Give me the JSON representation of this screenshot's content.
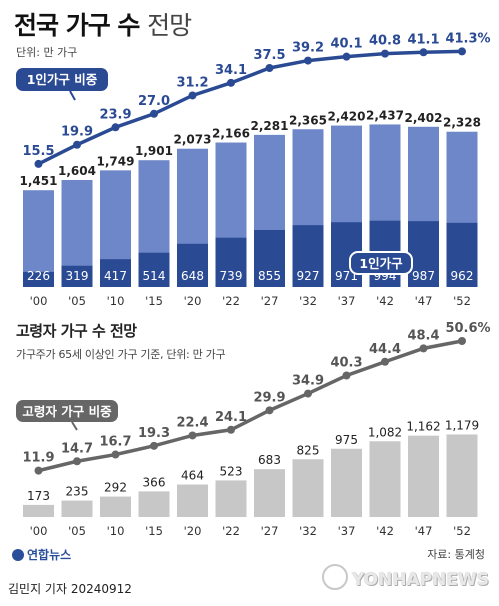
{
  "header": {
    "title_bold": "전국 가구 수",
    "title_light": "전망",
    "unit": "단위: 만 가구"
  },
  "section2": {
    "title": "고령자 가구 수 전망",
    "note": "가구주가 65세 이상인 가구 기준, 단위: 만 가구"
  },
  "footer": {
    "logo": "연합뉴스",
    "source": "자료: 통계청",
    "byline": "김민지 기자  20240912",
    "watermark": "YONHAPNEWS"
  },
  "colors": {
    "bar_light": "#6e87c8",
    "bar_dark": "#2b4a94",
    "line_blue": "#2b4a94",
    "bar_gray": "#c7c7c7",
    "line_gray": "#666666"
  },
  "chart_data": [
    {
      "type": "bar",
      "title": "전국 가구 수 전망",
      "categories": [
        "'00",
        "'05",
        "'10",
        "'15",
        "'20",
        "'22",
        "'27",
        "'32",
        "'37",
        "'42",
        "'47",
        "'52"
      ],
      "series": [
        {
          "name": "",
          "values": [
            1451,
            1604,
            1749,
            1901,
            2073,
            2166,
            2281,
            2365,
            2420,
            2437,
            2402,
            2328
          ],
          "labels": [
            "1,451",
            "1,604",
            "1,749",
            "1,901",
            "2,073",
            "2,166",
            "2,281",
            "2,365",
            "2,420",
            "2,437",
            "2,402",
            "2,328"
          ]
        },
        {
          "name": "1인가구",
          "values": [
            226,
            319,
            417,
            514,
            648,
            739,
            855,
            927,
            971,
            994,
            987,
            962
          ],
          "labels": [
            "226",
            "319",
            "417",
            "514",
            "648",
            "739",
            "855",
            "927",
            "971",
            "994",
            "987",
            "962"
          ]
        }
      ],
      "line": {
        "name": "1인가구 비중",
        "values": [
          15.5,
          19.9,
          23.9,
          27.0,
          31.2,
          34.1,
          37.5,
          39.2,
          40.1,
          40.8,
          41.1,
          41.3
        ],
        "labels": [
          "15.5",
          "19.9",
          "23.9",
          "27.0",
          "31.2",
          "34.1",
          "37.5",
          "39.2",
          "40.1",
          "40.8",
          "41.1",
          "41.3%"
        ]
      }
    },
    {
      "type": "bar",
      "title": "고령자 가구 수 전망",
      "categories": [
        "'00",
        "'05",
        "'10",
        "'15",
        "'20",
        "'22",
        "'27",
        "'32",
        "'37",
        "'42",
        "'47",
        "'52"
      ],
      "series": [
        {
          "name": "",
          "values": [
            173,
            235,
            292,
            366,
            464,
            523,
            683,
            825,
            975,
            1082,
            1162,
            1179
          ],
          "labels": [
            "173",
            "235",
            "292",
            "366",
            "464",
            "523",
            "683",
            "825",
            "975",
            "1,082",
            "1,162",
            "1,179"
          ]
        }
      ],
      "line": {
        "name": "고령자 가구 비중",
        "values": [
          11.9,
          14.7,
          16.7,
          19.3,
          22.4,
          24.1,
          29.9,
          34.9,
          40.3,
          44.4,
          48.4,
          50.6
        ],
        "labels": [
          "11.9",
          "14.7",
          "16.7",
          "19.3",
          "22.4",
          "24.1",
          "29.9",
          "34.9",
          "40.3",
          "44.4",
          "48.4",
          "50.6%"
        ]
      }
    }
  ]
}
